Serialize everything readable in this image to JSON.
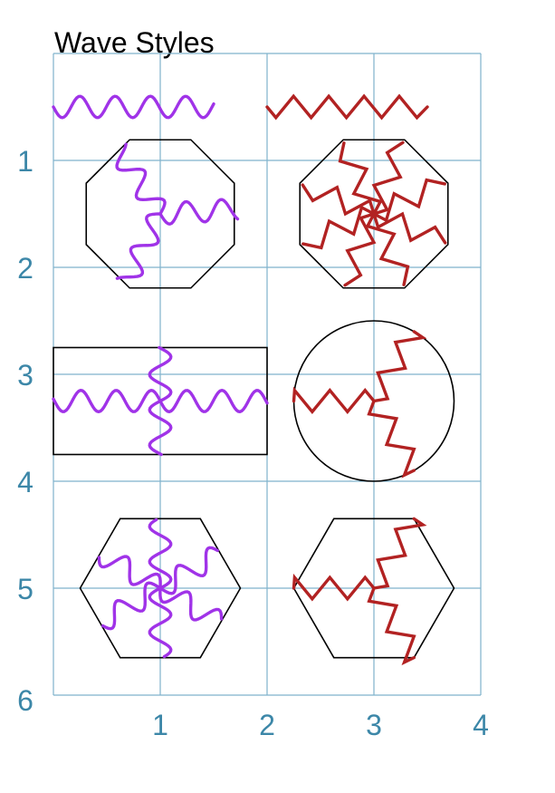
{
  "title": "Wave Styles",
  "colors": {
    "grid": "#7fb2cc",
    "tick_label": "#3c87a8",
    "wave_sine": "#a033e8",
    "wave_zigzag": "#b22222",
    "shape_outline": "#000000"
  },
  "x_ticks": [
    "1",
    "2",
    "3",
    "4"
  ],
  "y_ticks": [
    "1",
    "2",
    "3",
    "4",
    "5",
    "6"
  ],
  "panels": [
    {
      "shape": "none",
      "wave": "sine",
      "arrangement": "single horizontal line"
    },
    {
      "shape": "none",
      "wave": "zigzag",
      "arrangement": "single horizontal line"
    },
    {
      "shape": "octagon",
      "wave": "sine",
      "arrangement": "3 radial arms"
    },
    {
      "shape": "octagon",
      "wave": "zigzag",
      "arrangement": "8 radial arms"
    },
    {
      "shape": "rectangle",
      "wave": "sine",
      "arrangement": "4 radial arms"
    },
    {
      "shape": "circle",
      "wave": "zigzag",
      "arrangement": "3 radial arms"
    },
    {
      "shape": "hexagon",
      "wave": "sine",
      "arrangement": "6 radial arms"
    },
    {
      "shape": "hexagon",
      "wave": "zigzag",
      "arrangement": "3 radial arms"
    }
  ]
}
